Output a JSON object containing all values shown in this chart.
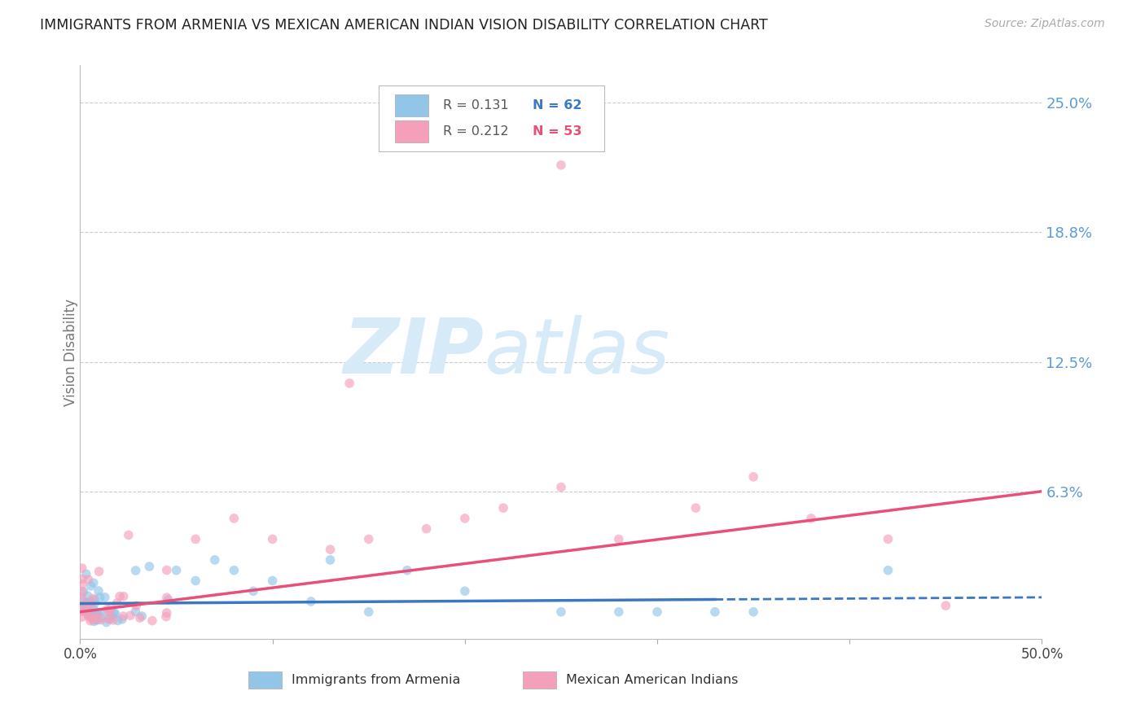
{
  "title": "IMMIGRANTS FROM ARMENIA VS MEXICAN AMERICAN INDIAN VISION DISABILITY CORRELATION CHART",
  "source": "Source: ZipAtlas.com",
  "ylabel": "Vision Disability",
  "right_ytick_labels": [
    "25.0%",
    "18.8%",
    "12.5%",
    "6.3%"
  ],
  "right_ytick_values": [
    0.25,
    0.188,
    0.125,
    0.063
  ],
  "xlim": [
    0.0,
    0.5
  ],
  "ylim": [
    -0.008,
    0.268
  ],
  "series1_label": "Immigrants from Armenia",
  "series1_color": "#92C5E8",
  "series1_line_color": "#3B78C4",
  "series1_R": 0.131,
  "series1_N": 62,
  "series2_label": "Mexican American Indians",
  "series2_color": "#F4A0BB",
  "series2_line_color": "#E8507A",
  "series2_R": 0.212,
  "series2_N": 53,
  "title_color": "#222222",
  "axis_label_color": "#777777",
  "right_axis_color": "#5B9BD5",
  "watermark_color": "#D6EAF8",
  "background_color": "#FFFFFF",
  "grid_color": "#CCCCCC",
  "trend1_y0": 0.009,
  "trend1_y1": 0.012,
  "trend2_y0": 0.005,
  "trend2_y1": 0.063,
  "trend1_solid_end": 0.33,
  "legend_R1_color": "#555555",
  "legend_N1_color": "#3B78C4",
  "legend_R2_color": "#555555",
  "legend_N2_color": "#E8507A"
}
